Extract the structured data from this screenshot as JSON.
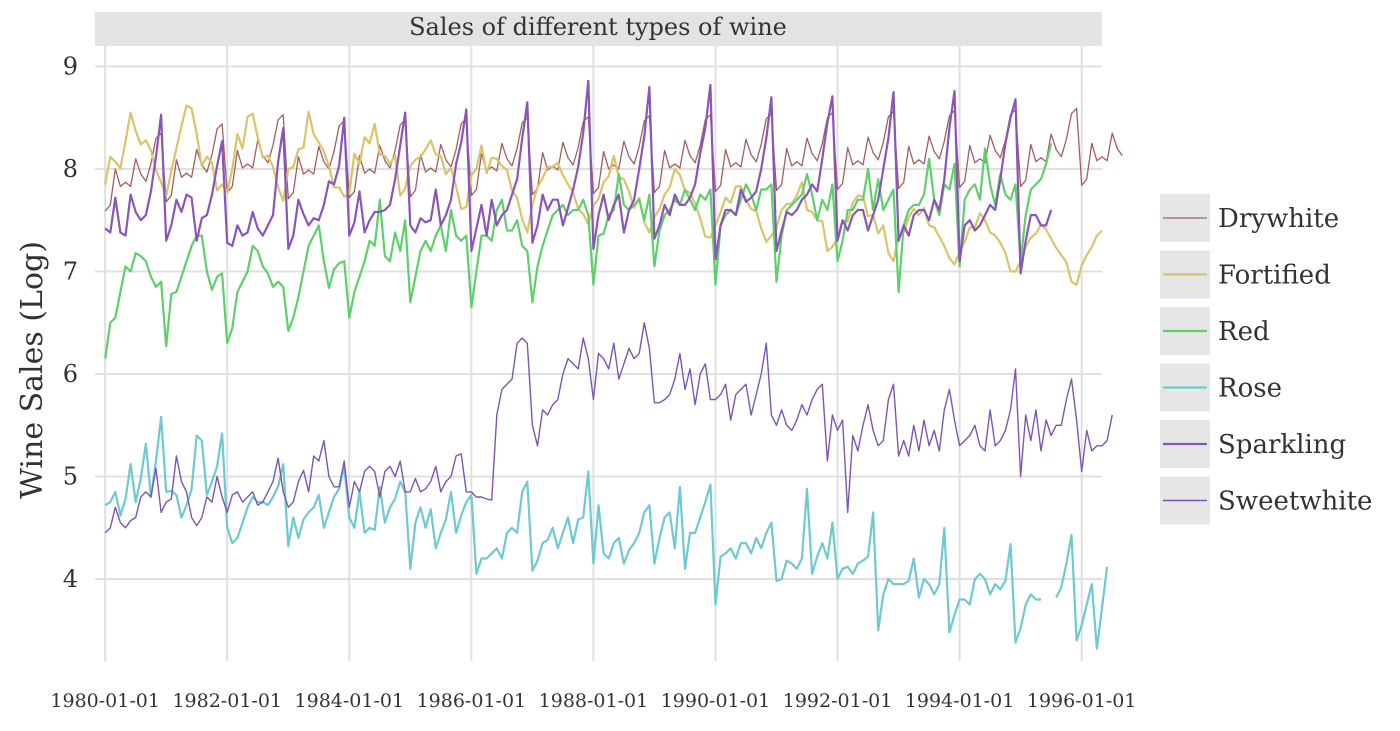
{
  "chart_data": {
    "type": "line",
    "title": "Sales of different types of wine",
    "xlabel": "",
    "ylabel": "Wine Sales (Log)",
    "xlim": [
      "1979-11-01",
      "1996-05-01"
    ],
    "ylim": [
      3.2,
      9.2
    ],
    "x_ticks": [
      "1980-01-01",
      "1982-01-01",
      "1984-01-01",
      "1986-01-01",
      "1988-01-01",
      "1990-01-01",
      "1992-01-01",
      "1994-01-01",
      "1996-01-01"
    ],
    "y_ticks": [
      4,
      5,
      6,
      7,
      8,
      9
    ],
    "grid": true,
    "legend_position": "right",
    "start_date": "1980-01",
    "frequency": "monthly",
    "series": [
      {
        "name": "Drywhite",
        "color": "#a0605c",
        "values": [
          7.59,
          7.65,
          8.0,
          7.83,
          7.87,
          7.83,
          8.1,
          7.95,
          7.88,
          8.05,
          8.3,
          8.35,
          7.68,
          7.74,
          8.09,
          7.92,
          7.96,
          7.92,
          8.19,
          8.04,
          7.97,
          8.14,
          8.39,
          8.44,
          7.77,
          7.83,
          8.18,
          8.01,
          8.05,
          8.01,
          8.28,
          8.13,
          8.06,
          8.23,
          8.48,
          8.53,
          7.71,
          7.77,
          8.12,
          7.95,
          7.99,
          7.95,
          8.22,
          8.07,
          8.0,
          8.17,
          8.42,
          8.47,
          7.72,
          7.78,
          8.13,
          7.96,
          8.0,
          7.96,
          8.23,
          8.08,
          8.01,
          8.18,
          8.43,
          8.48,
          7.73,
          7.79,
          8.14,
          7.97,
          8.01,
          7.97,
          8.24,
          8.09,
          8.02,
          8.19,
          8.44,
          8.49,
          7.74,
          7.8,
          8.15,
          7.98,
          8.02,
          7.98,
          8.25,
          8.1,
          8.03,
          8.2,
          8.45,
          8.5,
          7.75,
          7.81,
          8.16,
          7.99,
          8.03,
          7.99,
          8.26,
          8.11,
          8.04,
          8.21,
          8.46,
          8.51,
          7.76,
          7.82,
          8.17,
          8.0,
          8.04,
          8.0,
          8.27,
          8.12,
          8.05,
          8.22,
          8.47,
          8.52,
          7.77,
          7.83,
          8.18,
          8.01,
          8.05,
          8.01,
          8.28,
          8.13,
          8.06,
          8.23,
          8.48,
          8.53,
          7.78,
          7.84,
          8.19,
          8.02,
          8.06,
          8.02,
          8.29,
          8.14,
          8.07,
          8.24,
          8.49,
          8.54,
          7.79,
          7.85,
          8.2,
          8.03,
          8.07,
          8.03,
          8.3,
          8.15,
          8.08,
          8.25,
          8.5,
          8.55,
          7.8,
          7.86,
          8.21,
          8.04,
          8.08,
          8.04,
          8.31,
          8.16,
          8.09,
          8.26,
          8.51,
          8.56,
          7.81,
          7.87,
          8.22,
          8.05,
          8.09,
          8.05,
          8.32,
          8.17,
          8.1,
          8.27,
          8.52,
          8.57,
          7.82,
          7.88,
          8.23,
          8.06,
          8.1,
          8.06,
          8.33,
          8.18,
          8.11,
          8.28,
          8.53,
          8.58,
          7.83,
          7.89,
          8.24,
          8.07,
          8.11,
          8.07,
          8.34,
          8.19,
          8.12,
          8.29,
          8.54,
          8.59,
          7.84,
          7.9,
          8.25,
          8.08,
          8.12,
          8.08,
          8.35,
          8.2,
          8.13
        ]
      },
      {
        "name": "Fortified",
        "color": "#d9c46b",
        "values": [
          7.85,
          8.12,
          8.07,
          8.01,
          8.27,
          8.55,
          8.37,
          8.24,
          8.28,
          8.18,
          7.99,
          7.87,
          7.74,
          7.98,
          8.2,
          8.42,
          8.62,
          8.59,
          8.34,
          8.03,
          8.12,
          8.06,
          7.79,
          7.85,
          7.77,
          8.0,
          8.34,
          8.2,
          8.51,
          8.54,
          8.31,
          8.11,
          8.13,
          8.02,
          7.82,
          7.69,
          8.0,
          8.02,
          8.19,
          8.21,
          8.56,
          8.34,
          8.26,
          8.17,
          8.03,
          7.82,
          7.82,
          7.73,
          7.76,
          8.15,
          8.05,
          8.31,
          8.25,
          8.44,
          8.14,
          8.13,
          8.05,
          8.13,
          7.74,
          7.81,
          8.03,
          8.09,
          8.12,
          8.19,
          8.28,
          8.14,
          8.13,
          7.95,
          8.01,
          7.83,
          7.61,
          7.63,
          7.94,
          8.0,
          8.23,
          7.96,
          8.11,
          8.1,
          8.03,
          7.99,
          7.79,
          7.72,
          7.51,
          7.38,
          7.65,
          7.82,
          7.91,
          8.02,
          8.02,
          8.06,
          7.94,
          7.85,
          7.77,
          7.61,
          7.56,
          7.46,
          7.64,
          7.71,
          7.87,
          7.93,
          8.13,
          7.92,
          7.9,
          7.78,
          7.62,
          7.72,
          7.48,
          7.38,
          7.53,
          7.61,
          7.75,
          7.82,
          8.0,
          7.94,
          7.79,
          7.77,
          7.66,
          7.52,
          7.34,
          7.33,
          7.45,
          7.58,
          7.72,
          7.67,
          7.83,
          7.83,
          7.7,
          7.61,
          7.59,
          7.42,
          7.29,
          7.35,
          7.43,
          7.6,
          7.66,
          7.66,
          7.74,
          7.87,
          7.6,
          7.58,
          7.5,
          7.49,
          7.2,
          7.24,
          7.33,
          7.49,
          7.49,
          7.67,
          7.74,
          7.73,
          7.54,
          7.55,
          7.37,
          7.45,
          7.18,
          7.1,
          7.34,
          7.38,
          7.53,
          7.61,
          7.55,
          7.62,
          7.45,
          7.43,
          7.34,
          7.25,
          7.13,
          7.07,
          7.19,
          7.29,
          7.43,
          7.43,
          7.57,
          7.5,
          7.38,
          7.35,
          7.28,
          7.18,
          7.0,
          7.0,
          7.1,
          7.24,
          7.33,
          7.37,
          7.46,
          7.41,
          7.32,
          7.23,
          7.16,
          7.09,
          6.9,
          6.87,
          7.06,
          7.16,
          7.24,
          7.35,
          7.4
        ]
      },
      {
        "name": "Red",
        "color": "#5fcf6c",
        "values": [
          6.15,
          6.5,
          6.55,
          6.8,
          7.05,
          7.0,
          7.18,
          7.15,
          7.1,
          6.95,
          6.85,
          6.9,
          6.27,
          6.78,
          6.8,
          6.95,
          7.1,
          7.25,
          7.35,
          7.35,
          7.0,
          6.82,
          6.95,
          6.98,
          6.3,
          6.45,
          6.8,
          6.9,
          7.0,
          7.25,
          7.2,
          7.05,
          6.98,
          6.85,
          6.9,
          6.85,
          6.42,
          6.55,
          6.75,
          7.0,
          7.25,
          7.35,
          7.45,
          7.1,
          6.84,
          7.02,
          7.08,
          7.1,
          6.55,
          6.8,
          6.95,
          7.1,
          7.3,
          7.25,
          7.7,
          7.15,
          7.1,
          7.38,
          7.2,
          7.5,
          6.7,
          6.95,
          7.2,
          7.3,
          7.2,
          7.35,
          7.45,
          7.2,
          7.6,
          7.35,
          7.3,
          7.35,
          6.65,
          7.0,
          7.35,
          7.35,
          7.3,
          7.6,
          7.7,
          7.4,
          7.4,
          7.5,
          7.25,
          7.2,
          6.7,
          7.05,
          7.25,
          7.4,
          7.55,
          7.6,
          7.65,
          7.55,
          7.6,
          7.6,
          7.7,
          7.55,
          6.87,
          7.35,
          7.37,
          7.55,
          7.6,
          7.95,
          7.65,
          7.6,
          7.65,
          7.7,
          7.5,
          7.75,
          7.05,
          7.4,
          7.55,
          7.6,
          7.7,
          7.65,
          7.8,
          7.7,
          7.6,
          7.75,
          7.7,
          7.8,
          6.87,
          7.45,
          7.55,
          7.6,
          7.55,
          7.7,
          7.85,
          7.75,
          7.6,
          7.8,
          7.8,
          7.85,
          6.9,
          7.35,
          7.6,
          7.65,
          7.7,
          7.75,
          7.95,
          7.75,
          7.5,
          7.7,
          7.6,
          7.85,
          7.1,
          7.3,
          7.6,
          7.6,
          7.7,
          7.7,
          8.0,
          7.6,
          7.9,
          7.6,
          7.7,
          7.8,
          6.8,
          7.45,
          7.6,
          7.65,
          7.65,
          7.75,
          8.1,
          7.7,
          7.55,
          7.85,
          7.8,
          8.05,
          7.05,
          7.7,
          7.8,
          7.85,
          7.7,
          8.2,
          7.85,
          7.65,
          7.95,
          7.75,
          7.7,
          7.85,
          7.1,
          7.55,
          7.8,
          7.85,
          7.9,
          8.05,
          8.25
        ]
      },
      {
        "name": "Rose",
        "color": "#6ec9d0",
        "values": [
          4.72,
          4.75,
          4.85,
          4.62,
          4.78,
          5.12,
          4.75,
          4.98,
          5.32,
          4.8,
          5.15,
          5.58,
          4.85,
          4.86,
          4.82,
          4.6,
          4.72,
          4.88,
          5.4,
          5.35,
          4.82,
          4.95,
          5.1,
          5.42,
          4.5,
          4.35,
          4.4,
          4.55,
          4.7,
          4.8,
          4.75,
          4.75,
          4.72,
          4.8,
          4.9,
          5.12,
          4.32,
          4.6,
          4.4,
          4.58,
          4.65,
          4.7,
          4.82,
          4.5,
          4.65,
          4.8,
          4.88,
          5.1,
          4.6,
          4.5,
          4.85,
          4.45,
          4.5,
          4.48,
          4.9,
          4.55,
          4.7,
          4.78,
          4.95,
          4.85,
          4.1,
          4.55,
          4.7,
          4.5,
          4.68,
          4.3,
          4.45,
          4.58,
          4.85,
          4.45,
          4.62,
          4.75,
          4.82,
          4.05,
          4.2,
          4.2,
          4.25,
          4.3,
          4.2,
          4.45,
          4.5,
          4.45,
          4.85,
          4.95,
          4.08,
          4.18,
          4.35,
          4.38,
          4.5,
          4.3,
          4.45,
          4.6,
          4.35,
          4.58,
          4.6,
          5.05,
          4.15,
          4.72,
          4.25,
          4.2,
          4.35,
          4.4,
          4.15,
          4.28,
          4.35,
          4.45,
          4.65,
          4.72,
          4.15,
          4.4,
          4.6,
          4.65,
          4.3,
          4.9,
          4.1,
          4.45,
          4.45,
          4.6,
          4.75,
          4.92,
          3.75,
          4.22,
          4.25,
          4.3,
          4.2,
          4.35,
          4.35,
          4.25,
          4.4,
          4.3,
          4.45,
          4.55,
          3.98,
          4.0,
          4.18,
          4.15,
          4.1,
          4.2,
          4.88,
          4.05,
          4.22,
          4.35,
          4.2,
          4.55,
          4.0,
          4.1,
          4.12,
          4.05,
          4.15,
          4.18,
          4.22,
          4.65,
          3.5,
          3.85,
          4.0,
          3.95,
          3.95,
          3.95,
          3.98,
          4.2,
          3.82,
          4.0,
          3.95,
          3.85,
          3.95,
          4.5,
          3.48,
          3.65,
          3.8,
          3.8,
          3.75,
          4.0,
          4.05,
          4.0,
          3.85,
          3.95,
          3.9,
          3.98,
          4.34,
          3.38,
          3.52,
          3.75,
          3.85,
          3.8,
          3.8,
          null,
          null,
          3.82,
          3.92,
          4.15,
          4.43,
          3.4,
          3.55,
          3.75,
          3.95,
          3.32,
          3.72,
          4.12
        ]
      },
      {
        "name": "Sparkling",
        "color": "#8a55b8",
        "values": [
          7.42,
          7.38,
          7.72,
          7.38,
          7.35,
          7.75,
          7.58,
          7.5,
          7.55,
          7.78,
          8.12,
          8.53,
          7.3,
          7.45,
          7.7,
          7.58,
          7.75,
          7.72,
          7.3,
          7.52,
          7.55,
          7.75,
          8.03,
          8.27,
          7.28,
          7.25,
          7.45,
          7.35,
          7.38,
          7.58,
          7.42,
          7.35,
          7.45,
          7.55,
          8.07,
          8.4,
          7.22,
          7.35,
          7.7,
          7.56,
          7.45,
          7.52,
          7.5,
          7.65,
          7.88,
          7.85,
          8.03,
          8.5,
          7.35,
          7.48,
          7.78,
          7.38,
          7.5,
          7.58,
          7.58,
          7.6,
          7.65,
          7.9,
          8.23,
          8.55,
          7.45,
          7.38,
          7.52,
          7.48,
          7.5,
          7.8,
          7.45,
          7.55,
          7.7,
          8.05,
          8.26,
          8.58,
          7.2,
          7.42,
          7.65,
          7.35,
          7.7,
          7.45,
          7.55,
          7.6,
          7.75,
          7.9,
          8.3,
          8.65,
          7.28,
          7.45,
          7.75,
          7.6,
          7.7,
          7.7,
          7.45,
          7.62,
          7.8,
          8.02,
          8.35,
          8.86,
          7.22,
          7.55,
          7.75,
          7.5,
          7.65,
          7.75,
          7.38,
          7.6,
          7.7,
          8.0,
          8.32,
          8.8,
          7.32,
          7.45,
          7.65,
          7.55,
          7.75,
          7.65,
          7.65,
          7.72,
          7.85,
          8.15,
          8.4,
          8.82,
          7.12,
          7.45,
          7.6,
          7.6,
          7.55,
          7.8,
          7.68,
          7.72,
          7.78,
          8.0,
          8.3,
          8.7,
          7.2,
          7.4,
          7.58,
          7.55,
          7.6,
          7.7,
          7.75,
          7.85,
          7.78,
          8.1,
          8.45,
          8.71,
          7.3,
          7.5,
          7.4,
          7.55,
          7.6,
          7.6,
          7.4,
          7.55,
          7.7,
          8.0,
          8.3,
          8.75,
          7.3,
          7.45,
          7.35,
          7.55,
          7.6,
          7.6,
          7.5,
          7.7,
          7.6,
          7.9,
          8.4,
          8.76,
          7.1,
          7.45,
          7.5,
          7.4,
          7.45,
          7.55,
          7.65,
          7.6,
          7.9,
          8.25,
          8.5,
          8.68,
          6.98,
          7.3,
          7.55,
          7.55,
          7.45,
          7.45,
          7.6
        ]
      },
      {
        "name": "Sweetwhite",
        "color": "#7c56b0",
        "values": [
          4.45,
          4.5,
          4.7,
          4.55,
          4.5,
          4.57,
          4.6,
          4.8,
          4.85,
          4.8,
          5.08,
          4.65,
          4.75,
          4.78,
          5.2,
          4.95,
          4.85,
          4.6,
          4.52,
          4.6,
          4.8,
          4.75,
          5.0,
          4.8,
          4.65,
          4.82,
          4.85,
          4.75,
          4.8,
          4.85,
          4.72,
          4.75,
          4.85,
          4.95,
          5.18,
          4.85,
          4.7,
          4.75,
          4.95,
          5.06,
          4.85,
          5.2,
          5.15,
          5.35,
          5.0,
          4.9,
          4.9,
          5.15,
          4.7,
          4.95,
          4.85,
          5.05,
          5.1,
          5.05,
          4.8,
          5.05,
          5.1,
          5.0,
          5.15,
          4.85,
          4.85,
          4.98,
          4.85,
          4.88,
          4.95,
          5.1,
          4.85,
          4.95,
          5.0,
          5.2,
          5.22,
          4.85,
          4.85,
          4.8,
          4.8,
          4.78,
          4.77,
          5.6,
          5.85,
          5.9,
          5.95,
          6.3,
          6.35,
          6.3,
          5.5,
          5.3,
          5.65,
          5.6,
          5.7,
          5.75,
          6.0,
          6.15,
          6.1,
          6.05,
          6.35,
          6.15,
          5.75,
          6.2,
          6.15,
          6.05,
          6.3,
          5.95,
          6.1,
          6.25,
          6.15,
          6.2,
          6.5,
          6.25,
          5.72,
          5.72,
          5.75,
          5.8,
          5.95,
          6.2,
          5.85,
          6.05,
          5.7,
          6.0,
          6.1,
          5.75,
          5.75,
          5.8,
          5.9,
          5.55,
          5.8,
          5.85,
          5.9,
          5.6,
          5.8,
          6.0,
          6.3,
          5.6,
          5.5,
          5.65,
          5.5,
          5.45,
          5.55,
          5.7,
          5.6,
          5.75,
          5.85,
          5.9,
          5.15,
          5.6,
          5.45,
          5.55,
          4.65,
          5.4,
          5.25,
          5.5,
          5.7,
          5.45,
          5.3,
          5.35,
          5.75,
          5.9,
          5.2,
          5.35,
          5.2,
          5.5,
          5.25,
          5.55,
          5.3,
          5.45,
          5.25,
          5.65,
          5.85,
          5.55,
          5.3,
          5.35,
          5.4,
          5.5,
          5.3,
          5.25,
          5.65,
          5.3,
          5.35,
          5.45,
          5.65,
          6.05,
          5.0,
          5.6,
          5.35,
          5.65,
          5.25,
          5.55,
          5.4,
          5.5,
          5.5,
          5.75,
          5.95,
          5.55,
          5.05,
          5.45,
          5.25,
          5.3,
          5.3,
          5.35,
          5.6
        ]
      }
    ]
  }
}
